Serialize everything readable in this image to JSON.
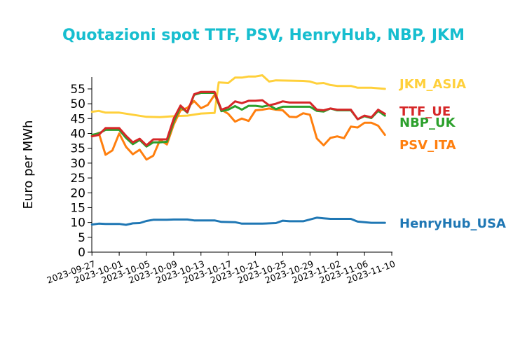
{
  "chart_data": {
    "type": "line",
    "title": "Quotazioni spot TTF, PSV, HenryHub, NBP, JKM",
    "ylabel": "Euro per MWh",
    "xlabel": "",
    "ylim": [
      0,
      59
    ],
    "yticks": [
      0,
      5,
      10,
      15,
      20,
      25,
      30,
      35,
      40,
      45,
      50,
      55
    ],
    "xticks": [
      "2023-09-27",
      "2023-10-01",
      "2023-10-05",
      "2023-10-09",
      "2023-10-13",
      "2023-10-17",
      "2023-10-21",
      "2023-10-25",
      "2023-10-29",
      "2023-11-02",
      "2023-11-06",
      "2023-11-10"
    ],
    "xlim": [
      "2023-09-27",
      "2023-11-10"
    ],
    "grid": false,
    "legend": "inline labels at right end of lines",
    "series": [
      {
        "name": "JKM_ASIA",
        "color": "#ffd03b",
        "points": [
          [
            "2023-09-27",
            47.3
          ],
          [
            "2023-09-28",
            47.6
          ],
          [
            "2023-09-29",
            47.0
          ],
          [
            "2023-10-01",
            47.0
          ],
          [
            "2023-10-03",
            46.3
          ],
          [
            "2023-10-05",
            45.6
          ],
          [
            "2023-10-07",
            45.5
          ],
          [
            "2023-10-09",
            45.8
          ],
          [
            "2023-10-11",
            46.0
          ],
          [
            "2023-10-13",
            46.7
          ],
          [
            "2023-10-15",
            46.9
          ],
          [
            "2023-10-15.6",
            57.2
          ],
          [
            "2023-10-17",
            57.0
          ],
          [
            "2023-10-18",
            58.8
          ],
          [
            "2023-10-19",
            58.8
          ],
          [
            "2023-10-20",
            59.2
          ],
          [
            "2023-10-21",
            59.2
          ],
          [
            "2023-10-22",
            59.6
          ],
          [
            "2023-10-23",
            57.5
          ],
          [
            "2023-10-24",
            57.9
          ],
          [
            "2023-10-26",
            57.8
          ],
          [
            "2023-10-28",
            57.7
          ],
          [
            "2023-10-29",
            57.5
          ],
          [
            "2023-10-30",
            56.8
          ],
          [
            "2023-10-31",
            57.0
          ],
          [
            "2023-11-01",
            56.3
          ],
          [
            "2023-11-02",
            56.0
          ],
          [
            "2023-11-04",
            56.0
          ],
          [
            "2023-11-05",
            55.4
          ],
          [
            "2023-11-07",
            55.4
          ],
          [
            "2023-11-09",
            55.0
          ]
        ]
      },
      {
        "name": "PSV_ITA",
        "color": "#ff7f0e",
        "points": [
          [
            "2023-09-27",
            39.2
          ],
          [
            "2023-09-28",
            40.2
          ],
          [
            "2023-09-29",
            32.8
          ],
          [
            "2023-09-30",
            34.3
          ],
          [
            "2023-10-01",
            40.0
          ],
          [
            "2023-10-02",
            35.5
          ],
          [
            "2023-10-03",
            33.0
          ],
          [
            "2023-10-04",
            34.5
          ],
          [
            "2023-10-05",
            31.2
          ],
          [
            "2023-10-06",
            32.5
          ],
          [
            "2023-10-07",
            37.8
          ],
          [
            "2023-10-08",
            36.3
          ],
          [
            "2023-10-09",
            43.0
          ],
          [
            "2023-10-10",
            47.8
          ],
          [
            "2023-10-11",
            48.6
          ],
          [
            "2023-10-12",
            50.9
          ],
          [
            "2023-10-13",
            48.5
          ],
          [
            "2023-10-14",
            49.6
          ],
          [
            "2023-10-15",
            53.0
          ],
          [
            "2023-10-16",
            48.0
          ],
          [
            "2023-10-17",
            46.6
          ],
          [
            "2023-10-18",
            44.0
          ],
          [
            "2023-10-19",
            45.0
          ],
          [
            "2023-10-20",
            44.2
          ],
          [
            "2023-10-21",
            47.8
          ],
          [
            "2023-10-22",
            48.0
          ],
          [
            "2023-10-23",
            48.4
          ],
          [
            "2023-10-24",
            48.0
          ],
          [
            "2023-10-25",
            47.8
          ],
          [
            "2023-10-26",
            45.6
          ],
          [
            "2023-10-27",
            45.5
          ],
          [
            "2023-10-28",
            46.8
          ],
          [
            "2023-10-29",
            46.3
          ],
          [
            "2023-10-30",
            38.3
          ],
          [
            "2023-10-31",
            36.0
          ],
          [
            "2023-11-01",
            38.5
          ],
          [
            "2023-11-02",
            39.0
          ],
          [
            "2023-11-03",
            38.4
          ],
          [
            "2023-11-04",
            42.3
          ],
          [
            "2023-11-05",
            42.0
          ],
          [
            "2023-11-06",
            43.6
          ],
          [
            "2023-11-07",
            43.6
          ],
          [
            "2023-11-08",
            42.6
          ],
          [
            "2023-11-09",
            39.5
          ]
        ]
      },
      {
        "name": "NBP_UK",
        "color": "#2ca02c",
        "points": [
          [
            "2023-09-27",
            39.5
          ],
          [
            "2023-09-28",
            40.0
          ],
          [
            "2023-09-29",
            41.2
          ],
          [
            "2023-10-01",
            41.2
          ],
          [
            "2023-10-02",
            38.5
          ],
          [
            "2023-10-03",
            36.4
          ],
          [
            "2023-10-04",
            37.8
          ],
          [
            "2023-10-05",
            35.6
          ],
          [
            "2023-10-06",
            37.0
          ],
          [
            "2023-10-07",
            37.0
          ],
          [
            "2023-10-08",
            37.2
          ],
          [
            "2023-10-09",
            44.0
          ],
          [
            "2023-10-10",
            49.0
          ],
          [
            "2023-10-11",
            47.0
          ],
          [
            "2023-10-12",
            53.0
          ],
          [
            "2023-10-13",
            53.7
          ],
          [
            "2023-10-15",
            53.7
          ],
          [
            "2023-10-16",
            47.5
          ],
          [
            "2023-10-17",
            48.0
          ],
          [
            "2023-10-18",
            49.2
          ],
          [
            "2023-10-19",
            48.0
          ],
          [
            "2023-10-20",
            49.3
          ],
          [
            "2023-10-21",
            49.3
          ],
          [
            "2023-10-22",
            49.0
          ],
          [
            "2023-10-23",
            49.5
          ],
          [
            "2023-10-24",
            48.2
          ],
          [
            "2023-10-25",
            49.0
          ],
          [
            "2023-10-26",
            49.0
          ],
          [
            "2023-10-29",
            49.0
          ],
          [
            "2023-10-30",
            47.6
          ],
          [
            "2023-10-31",
            47.4
          ],
          [
            "2023-11-01",
            48.4
          ],
          [
            "2023-11-02",
            47.8
          ],
          [
            "2023-11-04",
            47.8
          ],
          [
            "2023-11-05",
            44.8
          ],
          [
            "2023-11-06",
            45.8
          ],
          [
            "2023-11-07",
            45.2
          ],
          [
            "2023-11-08",
            47.6
          ],
          [
            "2023-11-09",
            46.0
          ]
        ]
      },
      {
        "name": "TTF_UE",
        "color": "#d62728",
        "points": [
          [
            "2023-09-27",
            39.0
          ],
          [
            "2023-09-28",
            39.5
          ],
          [
            "2023-09-29",
            41.8
          ],
          [
            "2023-10-01",
            41.8
          ],
          [
            "2023-10-02",
            39.2
          ],
          [
            "2023-10-03",
            37.0
          ],
          [
            "2023-10-04",
            38.2
          ],
          [
            "2023-10-05",
            36.0
          ],
          [
            "2023-10-06",
            38.0
          ],
          [
            "2023-10-08",
            38.0
          ],
          [
            "2023-10-09",
            45.0
          ],
          [
            "2023-10-10",
            49.4
          ],
          [
            "2023-10-11",
            47.2
          ],
          [
            "2023-10-12",
            53.2
          ],
          [
            "2023-10-13",
            54.0
          ],
          [
            "2023-10-15",
            54.0
          ],
          [
            "2023-10-16",
            48.0
          ],
          [
            "2023-10-17",
            48.8
          ],
          [
            "2023-10-18",
            50.8
          ],
          [
            "2023-10-19",
            50.2
          ],
          [
            "2023-10-20",
            51.0
          ],
          [
            "2023-10-21",
            51.0
          ],
          [
            "2023-10-22",
            51.2
          ],
          [
            "2023-10-23",
            49.5
          ],
          [
            "2023-10-24",
            50.0
          ],
          [
            "2023-10-25",
            50.8
          ],
          [
            "2023-10-26",
            50.4
          ],
          [
            "2023-10-29",
            50.4
          ],
          [
            "2023-10-30",
            48.0
          ],
          [
            "2023-10-31",
            47.8
          ],
          [
            "2023-11-01",
            48.4
          ],
          [
            "2023-11-02",
            48.0
          ],
          [
            "2023-11-04",
            48.0
          ],
          [
            "2023-11-05",
            44.8
          ],
          [
            "2023-11-06",
            46.0
          ],
          [
            "2023-11-07",
            45.4
          ],
          [
            "2023-11-08",
            48.0
          ],
          [
            "2023-11-09",
            46.6
          ]
        ]
      },
      {
        "name": "HenryHub_USA",
        "color": "#1f77b4",
        "points": [
          [
            "2023-09-27",
            9.3
          ],
          [
            "2023-09-28",
            9.6
          ],
          [
            "2023-09-29",
            9.5
          ],
          [
            "2023-10-01",
            9.5
          ],
          [
            "2023-10-02",
            9.2
          ],
          [
            "2023-10-03",
            9.7
          ],
          [
            "2023-10-04",
            9.8
          ],
          [
            "2023-10-05",
            10.5
          ],
          [
            "2023-10-06",
            10.9
          ],
          [
            "2023-10-08",
            10.9
          ],
          [
            "2023-10-09",
            11.0
          ],
          [
            "2023-10-11",
            11.0
          ],
          [
            "2023-10-12",
            10.7
          ],
          [
            "2023-10-15",
            10.7
          ],
          [
            "2023-10-16",
            10.2
          ],
          [
            "2023-10-18",
            10.1
          ],
          [
            "2023-10-19",
            9.6
          ],
          [
            "2023-10-22",
            9.6
          ],
          [
            "2023-10-24",
            9.8
          ],
          [
            "2023-10-25",
            10.6
          ],
          [
            "2023-10-26",
            10.4
          ],
          [
            "2023-10-28",
            10.4
          ],
          [
            "2023-10-30",
            11.6
          ],
          [
            "2023-10-31",
            11.4
          ],
          [
            "2023-11-01",
            11.2
          ],
          [
            "2023-11-04",
            11.2
          ],
          [
            "2023-11-05",
            10.3
          ],
          [
            "2023-11-07",
            9.9
          ],
          [
            "2023-11-09",
            9.9
          ]
        ]
      }
    ]
  }
}
